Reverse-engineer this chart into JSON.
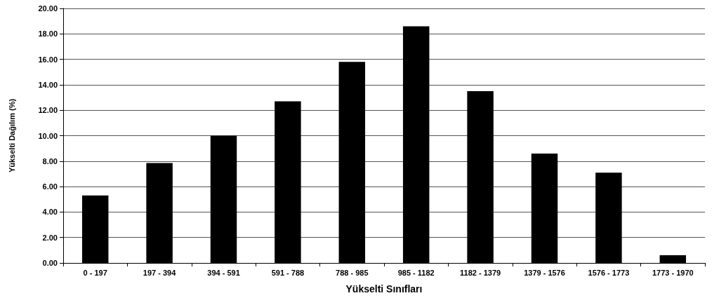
{
  "chart_data": {
    "type": "bar",
    "xlabel": "Yükselti Sınıfları",
    "ylabel": "Yükselti Dağılım (%)",
    "categories": [
      "0 - 197",
      "197 - 394",
      "394 - 591",
      "591 - 788",
      "788 - 985",
      "985 - 1182",
      "1182 - 1379",
      "1379 - 1576",
      "1576 - 1773",
      "1773 - 1970"
    ],
    "values": [
      5.3,
      7.85,
      10.0,
      12.7,
      15.8,
      18.6,
      13.5,
      8.6,
      7.1,
      0.6
    ],
    "color": "#000000",
    "ylim": [
      0,
      20
    ],
    "yticks": [
      {
        "value": 0,
        "label": "0.00"
      },
      {
        "value": 2,
        "label": "2.00"
      },
      {
        "value": 4,
        "label": "4.00"
      },
      {
        "value": 6,
        "label": "6.00"
      },
      {
        "value": 8,
        "label": "8.00"
      },
      {
        "value": 10,
        "label": "10.00"
      },
      {
        "value": 12,
        "label": "12.00"
      },
      {
        "value": 14,
        "label": "14.00"
      },
      {
        "value": 16,
        "label": "16.00"
      },
      {
        "value": 18,
        "label": "18.00"
      },
      {
        "value": 20,
        "label": "20.00"
      }
    ],
    "grid": "y"
  }
}
